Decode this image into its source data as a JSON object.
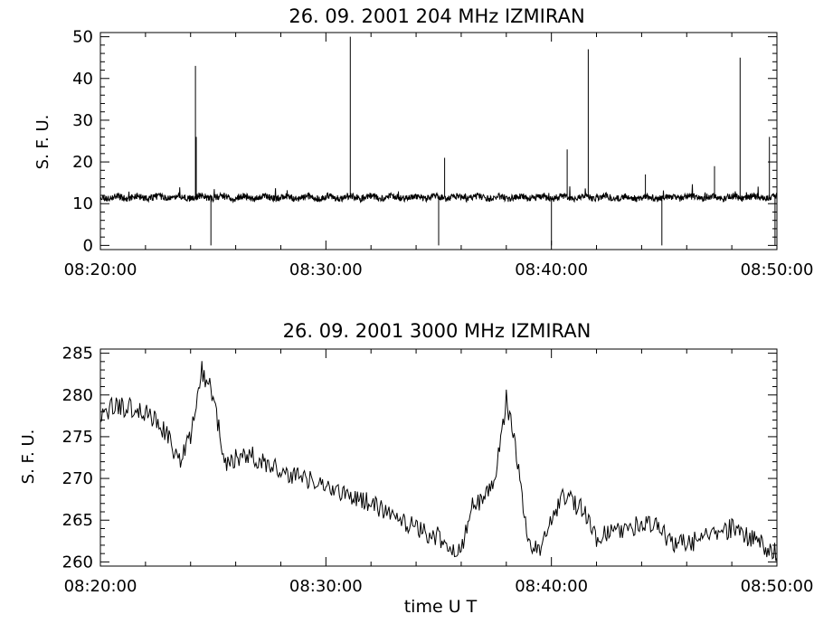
{
  "chart_data": [
    {
      "type": "line",
      "title": "26.  09.  2001    204 MHz    IZMIRAN",
      "xlabel": "",
      "ylabel": "S. F. U.",
      "xlim": [
        "08:20:00",
        "08:50:00"
      ],
      "ylim": [
        -1,
        51
      ],
      "x_ticks": [
        "08:20:00",
        "08:30:00",
        "08:40:00",
        "08:50:00"
      ],
      "y_ticks": [
        0,
        10,
        20,
        30,
        40,
        50
      ],
      "grid": false,
      "baseline_sfu": 11.5,
      "series": [
        {
          "values_note_free": true,
          "spikes": [
            {
              "time": "08:24:13",
              "value": 43
            },
            {
              "time": "08:24:15",
              "value": 26
            },
            {
              "time": "08:24:54",
              "value": 0
            },
            {
              "time": "08:31:05",
              "value": 50
            },
            {
              "time": "08:35:00",
              "value": 0
            },
            {
              "time": "08:35:16",
              "value": 21
            },
            {
              "time": "08:40:00",
              "value": 0
            },
            {
              "time": "08:40:42",
              "value": 23
            },
            {
              "time": "08:41:38",
              "value": 47
            },
            {
              "time": "08:44:10",
              "value": 17
            },
            {
              "time": "08:44:54",
              "value": 0
            },
            {
              "time": "08:47:14",
              "value": 19
            },
            {
              "time": "08:48:22",
              "value": 45
            },
            {
              "time": "08:49:40",
              "value": 26
            },
            {
              "time": "08:49:55",
              "value": 0
            }
          ]
        }
      ]
    },
    {
      "type": "line",
      "title": "26.  09.  2001    3000 MHz    IZMIRAN",
      "xlabel": "time   U T",
      "ylabel": "S. F. U.",
      "xlim": [
        "08:20:00",
        "08:50:00"
      ],
      "ylim": [
        259.5,
        285.5
      ],
      "x_ticks": [
        "08:20:00",
        "08:30:00",
        "08:40:00",
        "08:50:00"
      ],
      "y_ticks": [
        260,
        265,
        270,
        275,
        280,
        285
      ],
      "grid": false,
      "series": [
        {
          "trend": [
            {
              "time": "08:20:00",
              "value": 277.0
            },
            {
              "time": "08:20:30",
              "value": 278.5
            },
            {
              "time": "08:21:30",
              "value": 278.5
            },
            {
              "time": "08:22:30",
              "value": 277.0
            },
            {
              "time": "08:23:00",
              "value": 275.0
            },
            {
              "time": "08:23:30",
              "value": 272.0
            },
            {
              "time": "08:24:00",
              "value": 275.0
            },
            {
              "time": "08:24:30",
              "value": 283.0
            },
            {
              "time": "08:25:00",
              "value": 280.0
            },
            {
              "time": "08:25:30",
              "value": 272.0
            },
            {
              "time": "08:26:30",
              "value": 273.0
            },
            {
              "time": "08:28:00",
              "value": 271.0
            },
            {
              "time": "08:30:00",
              "value": 269.0
            },
            {
              "time": "08:32:00",
              "value": 267.0
            },
            {
              "time": "08:34:00",
              "value": 264.0
            },
            {
              "time": "08:35:00",
              "value": 263.0
            },
            {
              "time": "08:36:00",
              "value": 261.0
            },
            {
              "time": "08:36:30",
              "value": 267.0
            },
            {
              "time": "08:37:00",
              "value": 267.5
            },
            {
              "time": "08:37:30",
              "value": 270.0
            },
            {
              "time": "08:38:00",
              "value": 279.5
            },
            {
              "time": "08:38:30",
              "value": 272.0
            },
            {
              "time": "08:39:00",
              "value": 262.0
            },
            {
              "time": "08:39:30",
              "value": 261.5
            },
            {
              "time": "08:40:30",
              "value": 268.0
            },
            {
              "time": "08:41:30",
              "value": 266.0
            },
            {
              "time": "08:42:00",
              "value": 263.0
            },
            {
              "time": "08:43:00",
              "value": 264.0
            },
            {
              "time": "08:44:30",
              "value": 264.5
            },
            {
              "time": "08:45:30",
              "value": 262.0
            },
            {
              "time": "08:46:30",
              "value": 262.5
            },
            {
              "time": "08:48:00",
              "value": 264.0
            },
            {
              "time": "08:49:00",
              "value": 262.5
            },
            {
              "time": "08:50:00",
              "value": 261.0
            }
          ]
        }
      ]
    }
  ]
}
